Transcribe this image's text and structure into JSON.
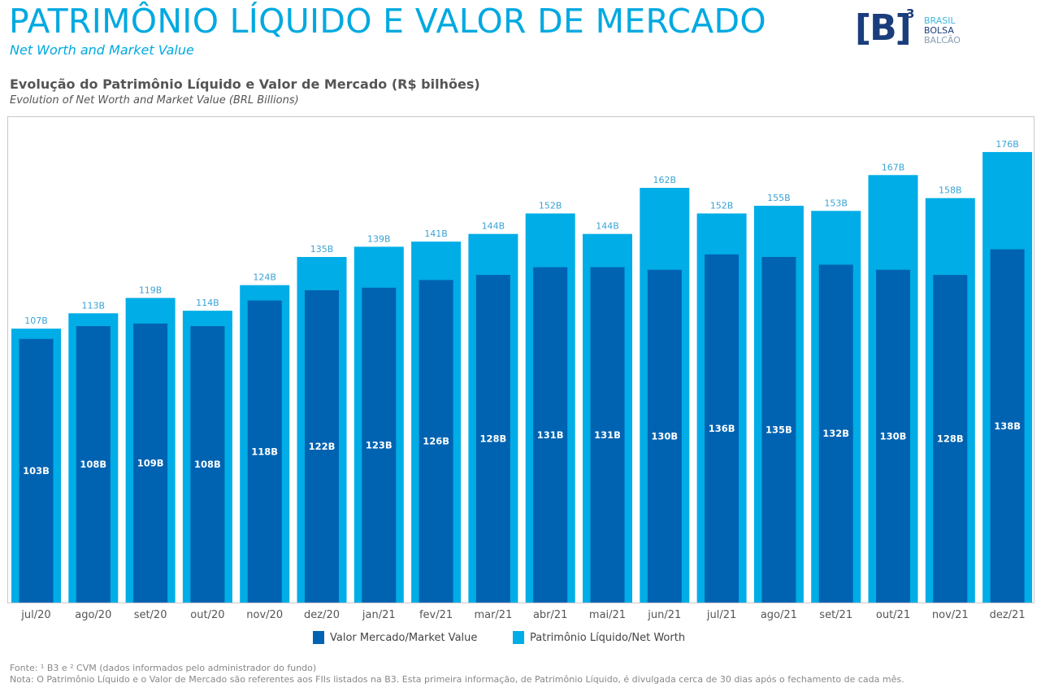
{
  "header": {
    "title": "PATRIMÔNIO LÍQUIDO E VALOR DE MERCADO",
    "subtitle": "Net Worth and Market Value"
  },
  "logo": {
    "mark": "[B]",
    "superscript": "3",
    "lines": [
      "BRASIL",
      "BOLSA",
      "BALCÃO"
    ],
    "line_colors": [
      "#3fb6e0",
      "#1a3d7c",
      "#8a9bb5"
    ]
  },
  "chart_data": {
    "type": "bar",
    "title": "Evolução do Patrimônio Líquido e Valor de Mercado (R$ bilhões)",
    "subtitle": "Evolution of Net Worth and Market Value (BRL Billions)",
    "xlabel": "",
    "ylabel": "",
    "ylim": [
      0,
      190
    ],
    "grid": false,
    "legend_position": "bottom-center",
    "categories": [
      "jul/20",
      "ago/20",
      "set/20",
      "out/20",
      "nov/20",
      "dez/20",
      "jan/21",
      "fev/21",
      "mar/21",
      "abr/21",
      "mai/21",
      "jun/21",
      "jul/21",
      "ago/21",
      "set/21",
      "out/21",
      "nov/21",
      "dez/21"
    ],
    "series": [
      {
        "name": "Valor Mercado/Market Value",
        "color": "#0063b1",
        "values": [
          103,
          108,
          109,
          108,
          118,
          122,
          123,
          126,
          128,
          131,
          131,
          130,
          136,
          135,
          132,
          130,
          128,
          138
        ],
        "labels": [
          "103B",
          "108B",
          "109B",
          "108B",
          "118B",
          "122B",
          "123B",
          "126B",
          "128B",
          "131B",
          "131B",
          "130B",
          "136B",
          "135B",
          "132B",
          "130B",
          "128B",
          "138B"
        ]
      },
      {
        "name": "Patrimônio Líquido/Net Worth",
        "color": "#00ade6",
        "values": [
          107,
          113,
          119,
          114,
          124,
          135,
          139,
          141,
          144,
          152,
          144,
          162,
          152,
          155,
          153,
          167,
          158,
          176
        ],
        "labels": [
          "107B",
          "113B",
          "119B",
          "114B",
          "124B",
          "135B",
          "139B",
          "141B",
          "144B",
          "152B",
          "144B",
          "162B",
          "152B",
          "155B",
          "153B",
          "167B",
          "158B",
          "176B"
        ]
      }
    ]
  },
  "footnotes": {
    "source": "Fonte: ¹ B3 e ² CVM (dados informados pelo administrador do fundo)",
    "note": "Nota: O Patrimônio Líquido e o Valor de Mercado são referentes aos FIIs listados na B3. Esta primeira informação, de Patrimônio Líquido, é divulgada cerca de 30 dias após o fechamento de cada mês."
  }
}
